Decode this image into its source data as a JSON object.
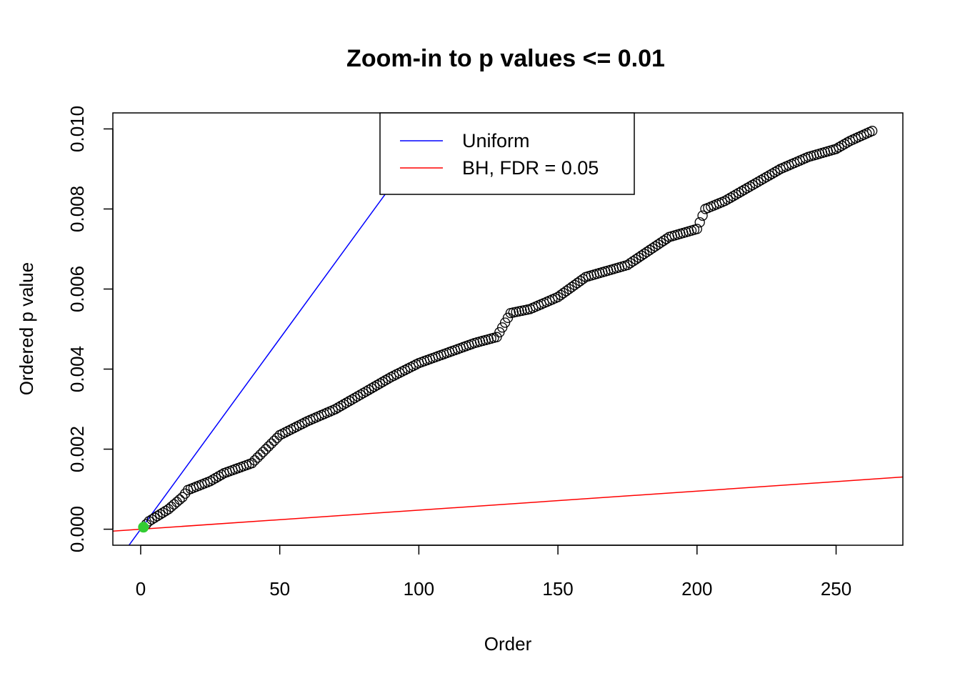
{
  "chart_data": {
    "type": "scatter",
    "title": "Zoom-in to p values <= 0.01",
    "xlabel": "Order",
    "ylabel": "Ordered p value",
    "xlim": [
      -10,
      274
    ],
    "ylim": [
      -0.0004,
      0.0104
    ],
    "xticks": [
      0,
      50,
      100,
      150,
      200,
      250
    ],
    "xtick_labels": [
      "0",
      "50",
      "100",
      "150",
      "200",
      "250"
    ],
    "yticks": [
      0,
      0.002,
      0.004,
      0.006,
      0.008,
      0.01
    ],
    "ytick_labels": [
      "0.000",
      "0.002",
      "0.004",
      "0.006",
      "0.008",
      "0.010"
    ],
    "grid": false,
    "legend": {
      "position": "top-center",
      "entries": [
        {
          "label": "Uniform",
          "color": "#0000ff"
        },
        {
          "label": "BH, FDR = 0.05",
          "color": "#ff0000"
        }
      ]
    },
    "lines": [
      {
        "name": "Uniform",
        "color": "#0000ff",
        "intercept": 0,
        "slope": 9.52e-05
      },
      {
        "name": "BH, FDR = 0.05",
        "color": "#ff0000",
        "intercept": 0,
        "slope": 4.76e-06
      }
    ],
    "points": {
      "color": "#000000",
      "n": 263,
      "knots": [
        [
          1,
          5e-05
        ],
        [
          3,
          0.0002
        ],
        [
          10,
          0.0005
        ],
        [
          15,
          0.0008
        ],
        [
          17,
          0.00098
        ],
        [
          25,
          0.0012
        ],
        [
          30,
          0.0014
        ],
        [
          40,
          0.00165
        ],
        [
          45,
          0.002
        ],
        [
          50,
          0.00235
        ],
        [
          60,
          0.0027
        ],
        [
          70,
          0.003
        ],
        [
          80,
          0.0034
        ],
        [
          90,
          0.0038
        ],
        [
          100,
          0.00415
        ],
        [
          110,
          0.0044
        ],
        [
          120,
          0.00465
        ],
        [
          128,
          0.0048
        ],
        [
          133,
          0.0054
        ],
        [
          140,
          0.0055
        ],
        [
          150,
          0.0058
        ],
        [
          160,
          0.0063
        ],
        [
          175,
          0.0066
        ],
        [
          190,
          0.0073
        ],
        [
          200,
          0.0075
        ],
        [
          203,
          0.008
        ],
        [
          210,
          0.0082
        ],
        [
          220,
          0.0086
        ],
        [
          230,
          0.009
        ],
        [
          240,
          0.0093
        ],
        [
          250,
          0.0095
        ],
        [
          255,
          0.0097
        ],
        [
          263,
          0.00995
        ]
      ]
    },
    "highlight": {
      "x": 1,
      "y": 5e-05,
      "color": "#33cc33"
    }
  }
}
